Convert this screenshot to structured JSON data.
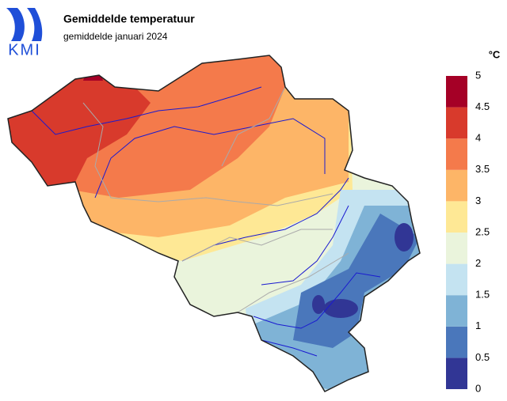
{
  "header": {
    "logo": "KMI",
    "title": "Gemiddelde temperatuur",
    "subtitle": "gemiddelde januari 2024"
  },
  "legend": {
    "title": "°C",
    "ticks": [
      0,
      0.5,
      1,
      1.5,
      2,
      2.5,
      3,
      3.5,
      4,
      4.5,
      5
    ],
    "colors": [
      "#313695",
      "#4a77bb",
      "#7fb3d6",
      "#c4e3f1",
      "#eaf4dc",
      "#fee895",
      "#fdb567",
      "#f47a4b",
      "#d83a2c",
      "#a50026"
    ]
  }
}
